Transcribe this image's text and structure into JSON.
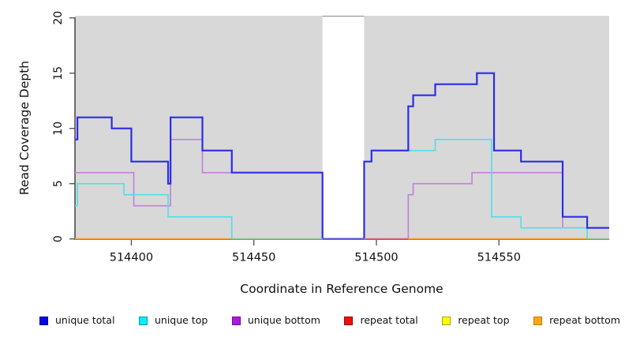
{
  "chart_data": {
    "type": "line",
    "subtype": "step",
    "title": "",
    "xlabel": "Coordinate in Reference Genome",
    "ylabel": "Read Coverage Depth",
    "xlim": [
      514377,
      514595
    ],
    "ylim": [
      0,
      20
    ],
    "x_ticks": [
      514400,
      514450,
      514500,
      514550
    ],
    "y_ticks": [
      0,
      5,
      10,
      15,
      20
    ],
    "grid": "off",
    "panel_background": "#d8d8d8",
    "figure_background": "#ffffff",
    "axis_color": "#1a1a1a",
    "tick_color": "#4d4d4d",
    "gap": {
      "x1": 514478,
      "x2": 514495,
      "fill": "#ffffff",
      "top_border": "#9a9a9a"
    },
    "series": [
      {
        "name": "unique total",
        "color": "#2c2ce8",
        "width": 2.2,
        "render": true,
        "steps": [
          [
            514377,
            9
          ],
          [
            514378,
            11
          ],
          [
            514392,
            10
          ],
          [
            514400,
            7
          ],
          [
            514415,
            5
          ],
          [
            514416,
            11
          ],
          [
            514429,
            8
          ],
          [
            514441,
            6
          ],
          [
            514478,
            0
          ],
          [
            514495,
            7
          ],
          [
            514498,
            8
          ],
          [
            514513,
            12
          ],
          [
            514515,
            13
          ],
          [
            514524,
            14
          ],
          [
            514541,
            15
          ],
          [
            514548,
            8
          ],
          [
            514559,
            7
          ],
          [
            514576,
            2
          ],
          [
            514586,
            1
          ]
        ]
      },
      {
        "name": "unique top",
        "color": "#50dee7",
        "width": 1.6,
        "render": true,
        "steps": [
          [
            514377,
            3
          ],
          [
            514378,
            5
          ],
          [
            514397,
            4
          ],
          [
            514415,
            2
          ],
          [
            514441,
            0
          ],
          [
            514495,
            7
          ],
          [
            514498,
            8
          ],
          [
            514524,
            9
          ],
          [
            514547,
            2
          ],
          [
            514559,
            1
          ],
          [
            514586,
            0
          ]
        ]
      },
      {
        "name": "unique bottom",
        "color": "#c17fdb",
        "width": 1.6,
        "render": true,
        "steps": [
          [
            514377,
            6
          ],
          [
            514401,
            3
          ],
          [
            514416,
            9
          ],
          [
            514429,
            6
          ],
          [
            514478,
            0
          ],
          [
            514513,
            4
          ],
          [
            514515,
            5
          ],
          [
            514539,
            6
          ],
          [
            514576,
            1
          ]
        ]
      },
      {
        "name": "repeat total",
        "color": "#cc1122",
        "width": 1.6,
        "render": false,
        "steps": [
          [
            514377,
            0
          ]
        ]
      },
      {
        "name": "repeat top",
        "color": "#f2f20a",
        "width": 1.6,
        "render": false,
        "steps": [
          [
            514377,
            0
          ]
        ]
      },
      {
        "name": "repeat bottom",
        "color": "#ff9e1b",
        "width": 2,
        "render": false,
        "steps": [
          [
            514377,
            0
          ]
        ]
      }
    ],
    "zero_line_segments": [
      {
        "x1": 514377,
        "x2": 514441,
        "color": "#ff9e1b",
        "represents": "repeat bottom"
      },
      {
        "x1": 514441,
        "x2": 514478,
        "color": "#8fcd90",
        "represents": "unique top over repeat bottom"
      },
      {
        "x1": 514478,
        "x2": 514495,
        "color": "#5a51e6",
        "represents": "unique total/bottom at zero through gap"
      },
      {
        "x1": 514495,
        "x2": 514513,
        "color": "#e0697b",
        "represents": "repeat total"
      },
      {
        "x1": 514513,
        "x2": 514586,
        "color": "#ff9e1b",
        "represents": "repeat bottom"
      },
      {
        "x1": 514586,
        "x2": 514595,
        "color": "#8fcd90",
        "represents": "unique top over repeat bottom"
      }
    ],
    "legend_position": "bottom"
  },
  "legend": {
    "items": [
      {
        "label": "unique total",
        "fill": "#0808dd",
        "border": "#0000a0"
      },
      {
        "label": "unique top",
        "fill": "#00f0ff",
        "border": "#0f9aa6"
      },
      {
        "label": "unique bottom",
        "fill": "#a81fd0",
        "border": "#7a00a8"
      },
      {
        "label": "repeat total",
        "fill": "#ee0f0f",
        "border": "#990000"
      },
      {
        "label": "repeat top",
        "fill": "#fdfd0a",
        "border": "#a8a800"
      },
      {
        "label": "repeat bottom",
        "fill": "#ffa51f",
        "border": "#c07d00"
      }
    ]
  }
}
